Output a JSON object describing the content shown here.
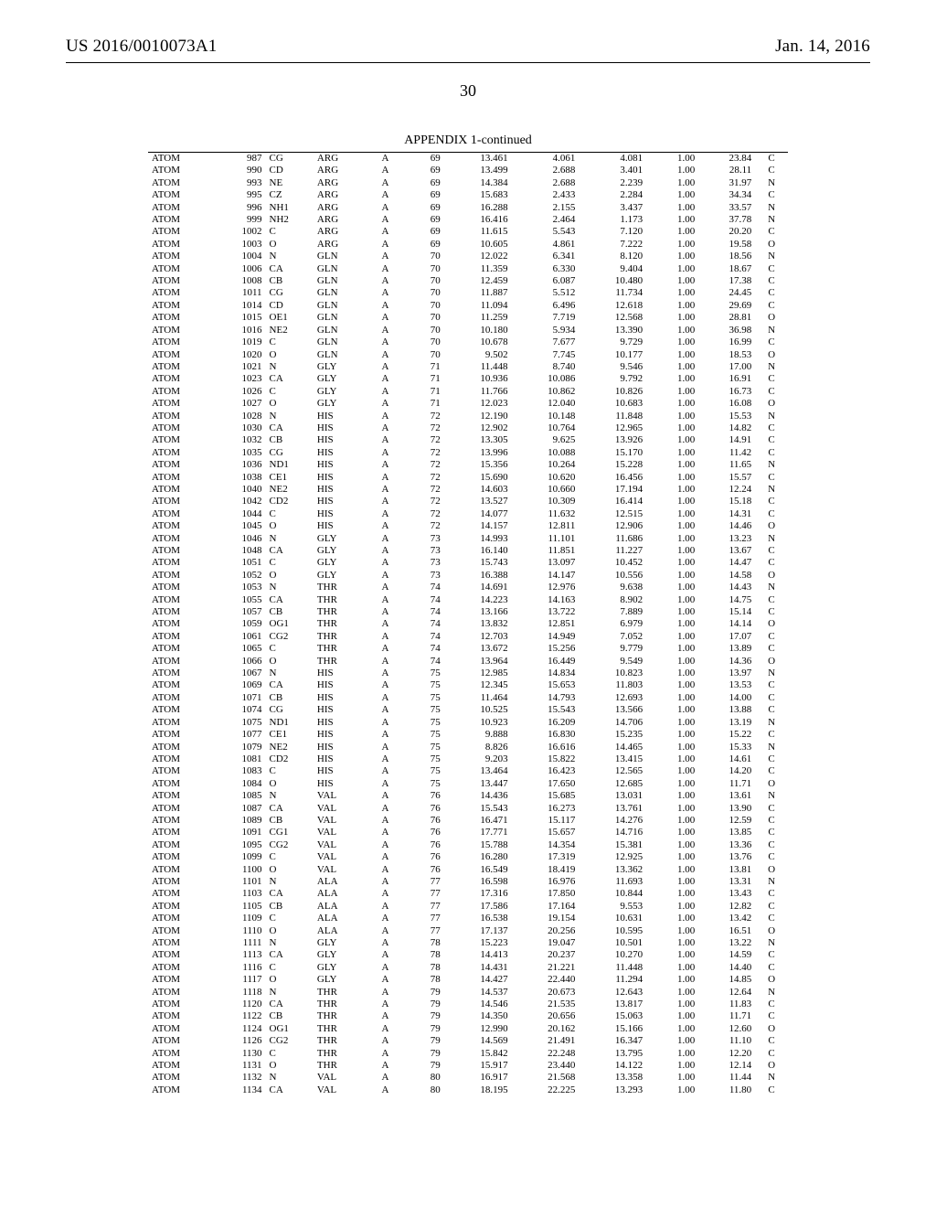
{
  "header": {
    "left": "US 2016/0010073A1",
    "right": "Jan. 14, 2016"
  },
  "pageNumber": "30",
  "caption": "APPENDIX 1-continued",
  "rows": [
    [
      "ATOM",
      "987",
      "CG",
      "ARG",
      "A",
      "69",
      "13.461",
      "4.061",
      "4.081",
      "1.00",
      "23.84",
      "C"
    ],
    [
      "ATOM",
      "990",
      "CD",
      "ARG",
      "A",
      "69",
      "13.499",
      "2.688",
      "3.401",
      "1.00",
      "28.11",
      "C"
    ],
    [
      "ATOM",
      "993",
      "NE",
      "ARG",
      "A",
      "69",
      "14.384",
      "2.688",
      "2.239",
      "1.00",
      "31.97",
      "N"
    ],
    [
      "ATOM",
      "995",
      "CZ",
      "ARG",
      "A",
      "69",
      "15.683",
      "2.433",
      "2.284",
      "1.00",
      "34.34",
      "C"
    ],
    [
      "ATOM",
      "996",
      "NH1",
      "ARG",
      "A",
      "69",
      "16.288",
      "2.155",
      "3.437",
      "1.00",
      "33.57",
      "N"
    ],
    [
      "ATOM",
      "999",
      "NH2",
      "ARG",
      "A",
      "69",
      "16.416",
      "2.464",
      "1.173",
      "1.00",
      "37.78",
      "N"
    ],
    [
      "ATOM",
      "1002",
      "C",
      "ARG",
      "A",
      "69",
      "11.615",
      "5.543",
      "7.120",
      "1.00",
      "20.20",
      "C"
    ],
    [
      "ATOM",
      "1003",
      "O",
      "ARG",
      "A",
      "69",
      "10.605",
      "4.861",
      "7.222",
      "1.00",
      "19.58",
      "O"
    ],
    [
      "ATOM",
      "1004",
      "N",
      "GLN",
      "A",
      "70",
      "12.022",
      "6.341",
      "8.120",
      "1.00",
      "18.56",
      "N"
    ],
    [
      "ATOM",
      "1006",
      "CA",
      "GLN",
      "A",
      "70",
      "11.359",
      "6.330",
      "9.404",
      "1.00",
      "18.67",
      "C"
    ],
    [
      "ATOM",
      "1008",
      "CB",
      "GLN",
      "A",
      "70",
      "12.459",
      "6.087",
      "10.480",
      "1.00",
      "17.38",
      "C"
    ],
    [
      "ATOM",
      "1011",
      "CG",
      "GLN",
      "A",
      "70",
      "11.887",
      "5.512",
      "11.734",
      "1.00",
      "24.45",
      "C"
    ],
    [
      "ATOM",
      "1014",
      "CD",
      "GLN",
      "A",
      "70",
      "11.094",
      "6.496",
      "12.618",
      "1.00",
      "29.69",
      "C"
    ],
    [
      "ATOM",
      "1015",
      "OE1",
      "GLN",
      "A",
      "70",
      "11.259",
      "7.719",
      "12.568",
      "1.00",
      "28.81",
      "O"
    ],
    [
      "ATOM",
      "1016",
      "NE2",
      "GLN",
      "A",
      "70",
      "10.180",
      "5.934",
      "13.390",
      "1.00",
      "36.98",
      "N"
    ],
    [
      "ATOM",
      "1019",
      "C",
      "GLN",
      "A",
      "70",
      "10.678",
      "7.677",
      "9.729",
      "1.00",
      "16.99",
      "C"
    ],
    [
      "ATOM",
      "1020",
      "O",
      "GLN",
      "A",
      "70",
      "9.502",
      "7.745",
      "10.177",
      "1.00",
      "18.53",
      "O"
    ],
    [
      "ATOM",
      "1021",
      "N",
      "GLY",
      "A",
      "71",
      "11.448",
      "8.740",
      "9.546",
      "1.00",
      "17.00",
      "N"
    ],
    [
      "ATOM",
      "1023",
      "CA",
      "GLY",
      "A",
      "71",
      "10.936",
      "10.086",
      "9.792",
      "1.00",
      "16.91",
      "C"
    ],
    [
      "ATOM",
      "1026",
      "C",
      "GLY",
      "A",
      "71",
      "11.766",
      "10.862",
      "10.826",
      "1.00",
      "16.73",
      "C"
    ],
    [
      "ATOM",
      "1027",
      "O",
      "GLY",
      "A",
      "71",
      "12.023",
      "12.040",
      "10.683",
      "1.00",
      "16.08",
      "O"
    ],
    [
      "ATOM",
      "1028",
      "N",
      "HIS",
      "A",
      "72",
      "12.190",
      "10.148",
      "11.848",
      "1.00",
      "15.53",
      "N"
    ],
    [
      "ATOM",
      "1030",
      "CA",
      "HIS",
      "A",
      "72",
      "12.902",
      "10.764",
      "12.965",
      "1.00",
      "14.82",
      "C"
    ],
    [
      "ATOM",
      "1032",
      "CB",
      "HIS",
      "A",
      "72",
      "13.305",
      "9.625",
      "13.926",
      "1.00",
      "14.91",
      "C"
    ],
    [
      "ATOM",
      "1035",
      "CG",
      "HIS",
      "A",
      "72",
      "13.996",
      "10.088",
      "15.170",
      "1.00",
      "11.42",
      "C"
    ],
    [
      "ATOM",
      "1036",
      "ND1",
      "HIS",
      "A",
      "72",
      "15.356",
      "10.264",
      "15.228",
      "1.00",
      "11.65",
      "N"
    ],
    [
      "ATOM",
      "1038",
      "CE1",
      "HIS",
      "A",
      "72",
      "15.690",
      "10.620",
      "16.456",
      "1.00",
      "15.57",
      "C"
    ],
    [
      "ATOM",
      "1040",
      "NE2",
      "HIS",
      "A",
      "72",
      "14.603",
      "10.660",
      "17.194",
      "1.00",
      "12.24",
      "N"
    ],
    [
      "ATOM",
      "1042",
      "CD2",
      "HIS",
      "A",
      "72",
      "13.527",
      "10.309",
      "16.414",
      "1.00",
      "15.18",
      "C"
    ],
    [
      "ATOM",
      "1044",
      "C",
      "HIS",
      "A",
      "72",
      "14.077",
      "11.632",
      "12.515",
      "1.00",
      "14.31",
      "C"
    ],
    [
      "ATOM",
      "1045",
      "O",
      "HIS",
      "A",
      "72",
      "14.157",
      "12.811",
      "12.906",
      "1.00",
      "14.46",
      "O"
    ],
    [
      "ATOM",
      "1046",
      "N",
      "GLY",
      "A",
      "73",
      "14.993",
      "11.101",
      "11.686",
      "1.00",
      "13.23",
      "N"
    ],
    [
      "ATOM",
      "1048",
      "CA",
      "GLY",
      "A",
      "73",
      "16.140",
      "11.851",
      "11.227",
      "1.00",
      "13.67",
      "C"
    ],
    [
      "ATOM",
      "1051",
      "C",
      "GLY",
      "A",
      "73",
      "15.743",
      "13.097",
      "10.452",
      "1.00",
      "14.47",
      "C"
    ],
    [
      "ATOM",
      "1052",
      "O",
      "GLY",
      "A",
      "73",
      "16.388",
      "14.147",
      "10.556",
      "1.00",
      "14.58",
      "O"
    ],
    [
      "ATOM",
      "1053",
      "N",
      "THR",
      "A",
      "74",
      "14.691",
      "12.976",
      "9.638",
      "1.00",
      "14.43",
      "N"
    ],
    [
      "ATOM",
      "1055",
      "CA",
      "THR",
      "A",
      "74",
      "14.223",
      "14.163",
      "8.902",
      "1.00",
      "14.75",
      "C"
    ],
    [
      "ATOM",
      "1057",
      "CB",
      "THR",
      "A",
      "74",
      "13.166",
      "13.722",
      "7.889",
      "1.00",
      "15.14",
      "C"
    ],
    [
      "ATOM",
      "1059",
      "OG1",
      "THR",
      "A",
      "74",
      "13.832",
      "12.851",
      "6.979",
      "1.00",
      "14.14",
      "O"
    ],
    [
      "ATOM",
      "1061",
      "CG2",
      "THR",
      "A",
      "74",
      "12.703",
      "14.949",
      "7.052",
      "1.00",
      "17.07",
      "C"
    ],
    [
      "ATOM",
      "1065",
      "C",
      "THR",
      "A",
      "74",
      "13.672",
      "15.256",
      "9.779",
      "1.00",
      "13.89",
      "C"
    ],
    [
      "ATOM",
      "1066",
      "O",
      "THR",
      "A",
      "74",
      "13.964",
      "16.449",
      "9.549",
      "1.00",
      "14.36",
      "O"
    ],
    [
      "ATOM",
      "1067",
      "N",
      "HIS",
      "A",
      "75",
      "12.985",
      "14.834",
      "10.823",
      "1.00",
      "13.97",
      "N"
    ],
    [
      "ATOM",
      "1069",
      "CA",
      "HIS",
      "A",
      "75",
      "12.345",
      "15.653",
      "11.803",
      "1.00",
      "13.53",
      "C"
    ],
    [
      "ATOM",
      "1071",
      "CB",
      "HIS",
      "A",
      "75",
      "11.464",
      "14.793",
      "12.693",
      "1.00",
      "14.00",
      "C"
    ],
    [
      "ATOM",
      "1074",
      "CG",
      "HIS",
      "A",
      "75",
      "10.525",
      "15.543",
      "13.566",
      "1.00",
      "13.88",
      "C"
    ],
    [
      "ATOM",
      "1075",
      "ND1",
      "HIS",
      "A",
      "75",
      "10.923",
      "16.209",
      "14.706",
      "1.00",
      "13.19",
      "N"
    ],
    [
      "ATOM",
      "1077",
      "CE1",
      "HIS",
      "A",
      "75",
      "9.888",
      "16.830",
      "15.235",
      "1.00",
      "15.22",
      "C"
    ],
    [
      "ATOM",
      "1079",
      "NE2",
      "HIS",
      "A",
      "75",
      "8.826",
      "16.616",
      "14.465",
      "1.00",
      "15.33",
      "N"
    ],
    [
      "ATOM",
      "1081",
      "CD2",
      "HIS",
      "A",
      "75",
      "9.203",
      "15.822",
      "13.415",
      "1.00",
      "14.61",
      "C"
    ],
    [
      "ATOM",
      "1083",
      "C",
      "HIS",
      "A",
      "75",
      "13.464",
      "16.423",
      "12.565",
      "1.00",
      "14.20",
      "C"
    ],
    [
      "ATOM",
      "1084",
      "O",
      "HIS",
      "A",
      "75",
      "13.447",
      "17.650",
      "12.685",
      "1.00",
      "11.71",
      "O"
    ],
    [
      "ATOM",
      "1085",
      "N",
      "VAL",
      "A",
      "76",
      "14.436",
      "15.685",
      "13.031",
      "1.00",
      "13.61",
      "N"
    ],
    [
      "ATOM",
      "1087",
      "CA",
      "VAL",
      "A",
      "76",
      "15.543",
      "16.273",
      "13.761",
      "1.00",
      "13.90",
      "C"
    ],
    [
      "ATOM",
      "1089",
      "CB",
      "VAL",
      "A",
      "76",
      "16.471",
      "15.117",
      "14.276",
      "1.00",
      "12.59",
      "C"
    ],
    [
      "ATOM",
      "1091",
      "CG1",
      "VAL",
      "A",
      "76",
      "17.771",
      "15.657",
      "14.716",
      "1.00",
      "13.85",
      "C"
    ],
    [
      "ATOM",
      "1095",
      "CG2",
      "VAL",
      "A",
      "76",
      "15.788",
      "14.354",
      "15.381",
      "1.00",
      "13.36",
      "C"
    ],
    [
      "ATOM",
      "1099",
      "C",
      "VAL",
      "A",
      "76",
      "16.280",
      "17.319",
      "12.925",
      "1.00",
      "13.76",
      "C"
    ],
    [
      "ATOM",
      "1100",
      "O",
      "VAL",
      "A",
      "76",
      "16.549",
      "18.419",
      "13.362",
      "1.00",
      "13.81",
      "O"
    ],
    [
      "ATOM",
      "1101",
      "N",
      "ALA",
      "A",
      "77",
      "16.598",
      "16.976",
      "11.693",
      "1.00",
      "13.31",
      "N"
    ],
    [
      "ATOM",
      "1103",
      "CA",
      "ALA",
      "A",
      "77",
      "17.316",
      "17.850",
      "10.844",
      "1.00",
      "13.43",
      "C"
    ],
    [
      "ATOM",
      "1105",
      "CB",
      "ALA",
      "A",
      "77",
      "17.586",
      "17.164",
      "9.553",
      "1.00",
      "12.82",
      "C"
    ],
    [
      "ATOM",
      "1109",
      "C",
      "ALA",
      "A",
      "77",
      "16.538",
      "19.154",
      "10.631",
      "1.00",
      "13.42",
      "C"
    ],
    [
      "ATOM",
      "1110",
      "O",
      "ALA",
      "A",
      "77",
      "17.137",
      "20.256",
      "10.595",
      "1.00",
      "16.51",
      "O"
    ],
    [
      "ATOM",
      "1111",
      "N",
      "GLY",
      "A",
      "78",
      "15.223",
      "19.047",
      "10.501",
      "1.00",
      "13.22",
      "N"
    ],
    [
      "ATOM",
      "1113",
      "CA",
      "GLY",
      "A",
      "78",
      "14.413",
      "20.237",
      "10.270",
      "1.00",
      "14.59",
      "C"
    ],
    [
      "ATOM",
      "1116",
      "C",
      "GLY",
      "A",
      "78",
      "14.431",
      "21.221",
      "11.448",
      "1.00",
      "14.40",
      "C"
    ],
    [
      "ATOM",
      "1117",
      "O",
      "GLY",
      "A",
      "78",
      "14.427",
      "22.440",
      "11.294",
      "1.00",
      "14.85",
      "O"
    ],
    [
      "ATOM",
      "1118",
      "N",
      "THR",
      "A",
      "79",
      "14.537",
      "20.673",
      "12.643",
      "1.00",
      "12.64",
      "N"
    ],
    [
      "ATOM",
      "1120",
      "CA",
      "THR",
      "A",
      "79",
      "14.546",
      "21.535",
      "13.817",
      "1.00",
      "11.83",
      "C"
    ],
    [
      "ATOM",
      "1122",
      "CB",
      "THR",
      "A",
      "79",
      "14.350",
      "20.656",
      "15.063",
      "1.00",
      "11.71",
      "C"
    ],
    [
      "ATOM",
      "1124",
      "OG1",
      "THR",
      "A",
      "79",
      "12.990",
      "20.162",
      "15.166",
      "1.00",
      "12.60",
      "O"
    ],
    [
      "ATOM",
      "1126",
      "CG2",
      "THR",
      "A",
      "79",
      "14.569",
      "21.491",
      "16.347",
      "1.00",
      "11.10",
      "C"
    ],
    [
      "ATOM",
      "1130",
      "C",
      "THR",
      "A",
      "79",
      "15.842",
      "22.248",
      "13.795",
      "1.00",
      "12.20",
      "C"
    ],
    [
      "ATOM",
      "1131",
      "O",
      "THR",
      "A",
      "79",
      "15.917",
      "23.440",
      "14.122",
      "1.00",
      "12.14",
      "O"
    ],
    [
      "ATOM",
      "1132",
      "N",
      "VAL",
      "A",
      "80",
      "16.917",
      "21.568",
      "13.358",
      "1.00",
      "11.44",
      "N"
    ],
    [
      "ATOM",
      "1134",
      "CA",
      "VAL",
      "A",
      "80",
      "18.195",
      "22.225",
      "13.293",
      "1.00",
      "11.80",
      "C"
    ]
  ]
}
